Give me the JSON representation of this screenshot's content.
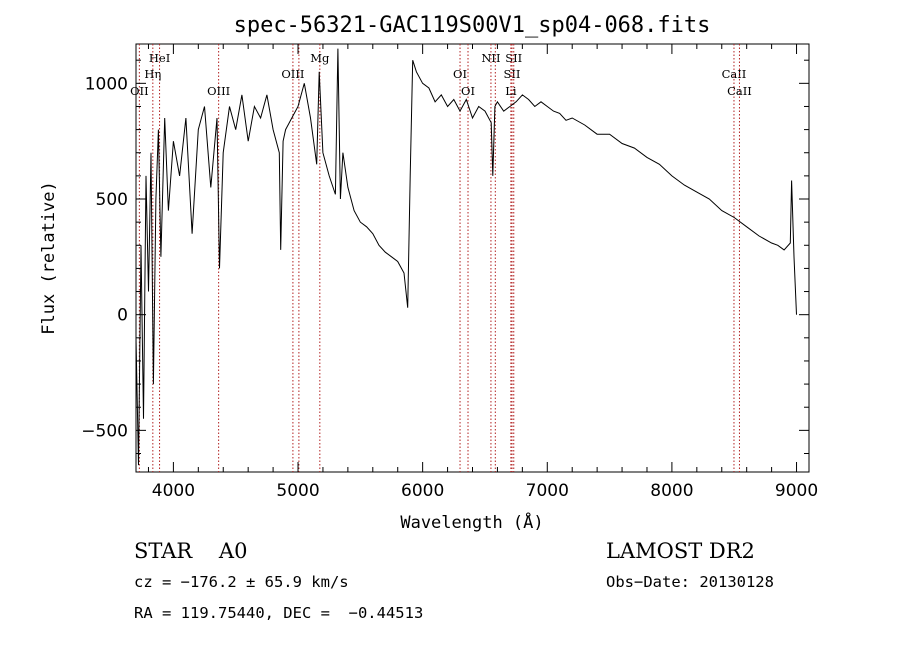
{
  "chart_data": {
    "type": "line",
    "title": "spec-56321-GAC119S00V1_sp04-068.fits",
    "xlabel": "Wavelength (Å)",
    "ylabel": "Flux (relative)",
    "xlim": [
      3700,
      9100
    ],
    "ylim": [
      -680,
      1170
    ],
    "xticks": [
      4000,
      5000,
      6000,
      7000,
      8000,
      9000
    ],
    "yticks": [
      -500,
      0,
      500,
      1000
    ],
    "grid": false,
    "series": [
      {
        "x": [
          3700,
          3720,
          3740,
          3760,
          3780,
          3800,
          3820,
          3840,
          3860,
          3880,
          3900,
          3930,
          3960,
          4000,
          4050,
          4100,
          4150,
          4200,
          4250,
          4300,
          4350,
          4370,
          4400,
          4450,
          4500,
          4550,
          4600,
          4650,
          4700,
          4750,
          4800,
          4850,
          4861,
          4880,
          4900,
          4950,
          5000,
          5050,
          5100,
          5150,
          5170,
          5200,
          5250,
          5300,
          5320,
          5340,
          5360,
          5400,
          5450,
          5500,
          5550,
          5600,
          5650,
          5700,
          5750,
          5800,
          5850,
          5880,
          5900,
          5920,
          5950,
          6000,
          6050,
          6100,
          6150,
          6200,
          6250,
          6300,
          6350,
          6400,
          6450,
          6500,
          6550,
          6563,
          6580,
          6600,
          6650,
          6700,
          6750,
          6800,
          6850,
          6900,
          6950,
          7000,
          7050,
          7100,
          7150,
          7200,
          7300,
          7400,
          7500,
          7600,
          7700,
          7800,
          7900,
          8000,
          8100,
          8200,
          8300,
          8400,
          8500,
          8600,
          8700,
          8800,
          8850,
          8900,
          8950,
          8960,
          8980,
          9000
        ],
        "y": [
          -100,
          -650,
          300,
          -450,
          600,
          100,
          700,
          -300,
          500,
          800,
          250,
          850,
          450,
          750,
          600,
          850,
          350,
          800,
          900,
          550,
          850,
          200,
          700,
          900,
          800,
          950,
          750,
          900,
          850,
          950,
          800,
          700,
          280,
          750,
          800,
          850,
          900,
          1000,
          850,
          650,
          1050,
          700,
          600,
          520,
          1150,
          500,
          700,
          550,
          450,
          400,
          380,
          350,
          300,
          270,
          250,
          230,
          180,
          30,
          600,
          1100,
          1050,
          1000,
          980,
          920,
          950,
          900,
          930,
          880,
          930,
          850,
          900,
          880,
          830,
          600,
          900,
          920,
          880,
          900,
          920,
          950,
          930,
          900,
          920,
          900,
          880,
          870,
          840,
          850,
          820,
          780,
          780,
          740,
          720,
          680,
          650,
          600,
          560,
          530,
          500,
          450,
          420,
          380,
          340,
          310,
          300,
          280,
          310,
          580,
          250,
          0
        ]
      }
    ],
    "lines": [
      {
        "label": "HeI",
        "x": 3889
      },
      {
        "label": "Hη",
        "x": 3835
      },
      {
        "label": "OII",
        "x": 3727
      },
      {
        "label": "OIII",
        "x": 4363
      },
      {
        "label": "OIII",
        "x": 4959
      },
      {
        "label": "OIII",
        "x": 5007
      },
      {
        "label": "Mg",
        "x": 5175
      },
      {
        "label": "OI",
        "x": 6300
      },
      {
        "label": "OI",
        "x": 6364
      },
      {
        "label": "NII",
        "x": 6548
      },
      {
        "label": "NII",
        "x": 6583
      },
      {
        "label": "SII",
        "x": 6717
      },
      {
        "label": "SII",
        "x": 6731
      },
      {
        "label": "Li",
        "x": 6708
      },
      {
        "label": "CaII",
        "x": 8498
      },
      {
        "label": "CaII",
        "x": 8542
      }
    ]
  },
  "info": {
    "classification": "STAR    A0",
    "survey": "LAMOST DR2",
    "cz": "cz = −176.2 ± 65.9 km/s",
    "obs_date": "Obs−Date: 20130128",
    "coords": "RA = 119.75440, DEC =  −0.44513"
  }
}
